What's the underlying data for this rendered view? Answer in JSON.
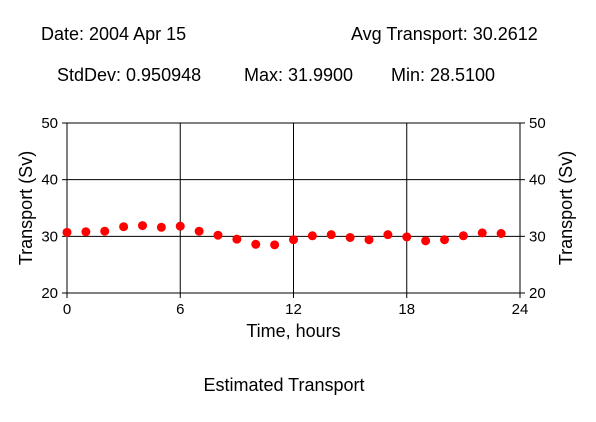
{
  "header": {
    "date": "Date: 2004 Apr 15",
    "avg_transport": "Avg Transport: 30.2612",
    "stddev": "StdDev: 0.950948",
    "max": "Max: 31.9900",
    "min": "Min: 28.5100"
  },
  "footer": {
    "caption": "Estimated Transport"
  },
  "chart_data": {
    "type": "scatter",
    "title": "",
    "xlabel": "Time, hours",
    "ylabel": "Transport (Sv)",
    "ylabel_right": "Transport (Sv)",
    "xlim": [
      0,
      24
    ],
    "ylim": [
      20,
      50
    ],
    "x_ticks": [
      0,
      6,
      12,
      18,
      24
    ],
    "y_ticks": [
      20,
      30,
      40,
      50
    ],
    "grid": true,
    "marker_color": "#ff0000",
    "x": [
      0,
      1,
      2,
      3,
      4,
      5,
      6,
      7,
      8,
      9,
      10,
      11,
      12,
      13,
      14,
      15,
      16,
      17,
      18,
      19,
      20,
      21,
      22,
      23
    ],
    "y": [
      30.7,
      30.8,
      30.9,
      31.7,
      31.9,
      31.6,
      31.8,
      30.9,
      30.2,
      29.5,
      28.6,
      28.5,
      29.4,
      30.1,
      30.3,
      29.8,
      29.4,
      30.3,
      29.9,
      29.2,
      29.4,
      30.1,
      30.6,
      30.5
    ]
  }
}
